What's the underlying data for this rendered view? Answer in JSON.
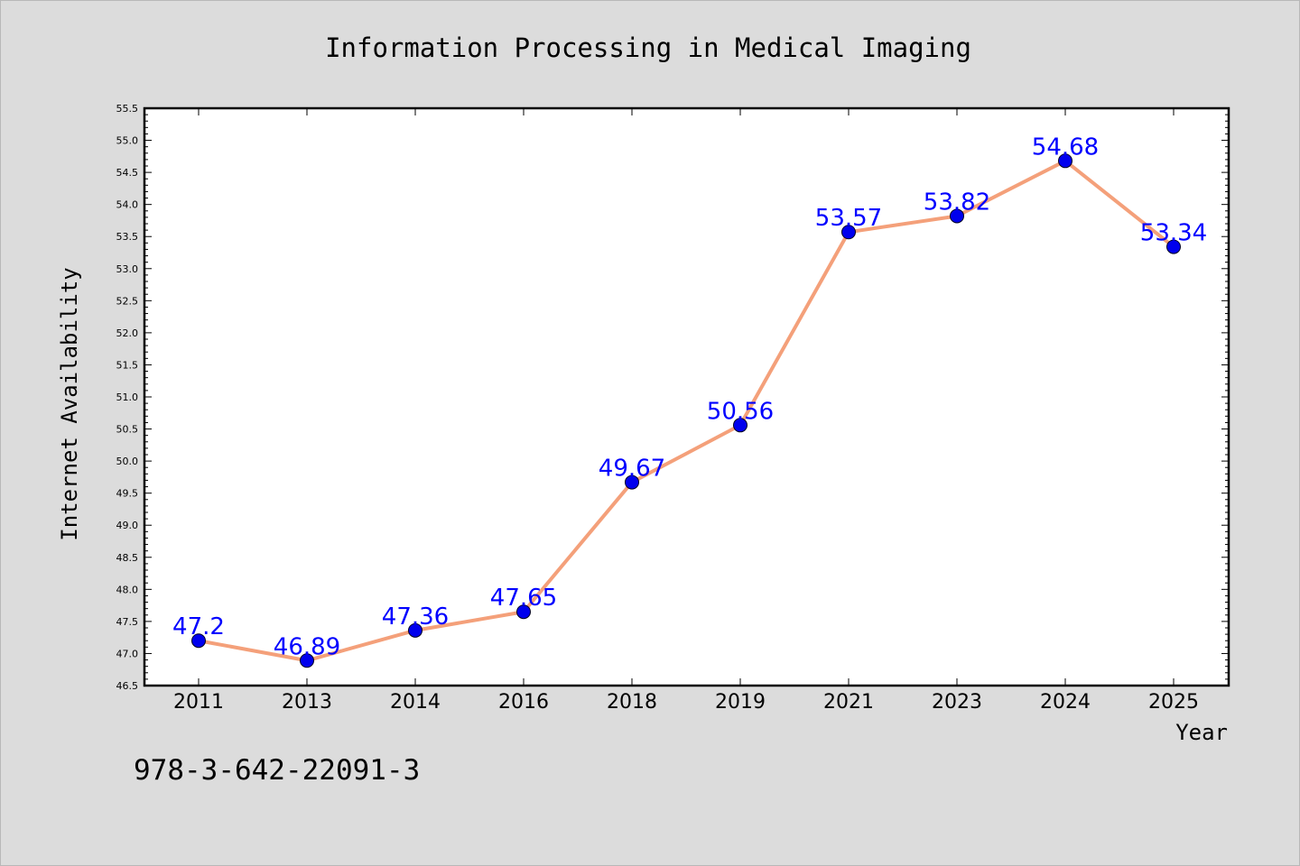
{
  "chart_data": {
    "type": "line",
    "title": "Information Processing in Medical Imaging",
    "xlabel": "Year",
    "ylabel": "Internet Availability",
    "categories": [
      "2011",
      "2013",
      "2014",
      "2016",
      "2018",
      "2019",
      "2021",
      "2023",
      "2024",
      "2025"
    ],
    "series": [
      {
        "values": [
          47.2,
          46.89,
          47.36,
          47.65,
          49.67,
          50.56,
          53.57,
          53.82,
          54.68,
          53.34
        ],
        "labels": [
          "47.2",
          "46.89",
          "47.36",
          "47.65",
          "49.67",
          "50.56",
          "53.57",
          "53.82",
          "54.68",
          "53.34"
        ]
      }
    ],
    "ylim": [
      46.5,
      55.5
    ],
    "yticks": [
      "46.5",
      "47.0",
      "47.5",
      "48.0",
      "48.5",
      "49.0",
      "49.5",
      "50.0",
      "50.5",
      "51.0",
      "51.5",
      "52.0",
      "52.5",
      "53.0",
      "53.5",
      "54.0",
      "54.5",
      "55.0",
      "55.5"
    ],
    "grid": false,
    "legend": "none",
    "line_color": "#f4a07a",
    "marker_color": "#0000ee",
    "label_color": "#0000ff",
    "background_color": "#dcdcdc",
    "plot_background": "#ffffff"
  },
  "annotation": "978-3-642-22091-3"
}
